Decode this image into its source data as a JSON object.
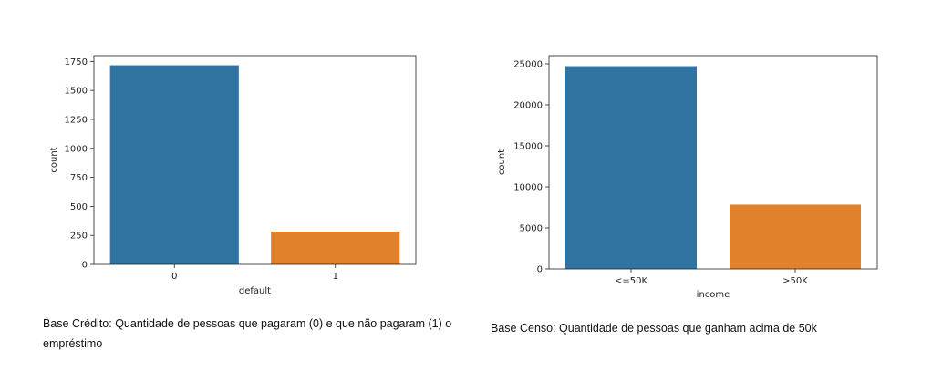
{
  "chart_data": [
    {
      "type": "bar",
      "categories": [
        "0",
        "1"
      ],
      "values": [
        1717,
        283
      ],
      "colors": [
        "#3274a1",
        "#e1812c"
      ],
      "xlabel": "default",
      "ylabel": "count",
      "ylim": [
        0,
        1800
      ],
      "yticks": [
        0,
        250,
        500,
        750,
        1000,
        1250,
        1500,
        1750
      ],
      "grid": false
    },
    {
      "type": "bar",
      "categories": [
        "<=50K",
        ">50K"
      ],
      "values": [
        24720,
        7841
      ],
      "colors": [
        "#3274a1",
        "#e1812c"
      ],
      "xlabel": "income",
      "ylabel": "count",
      "ylim": [
        0,
        26000
      ],
      "yticks": [
        0,
        5000,
        10000,
        15000,
        20000,
        25000
      ],
      "grid": false
    }
  ],
  "captions": {
    "left": "Base Crédito: Quantidade de pessoas que pagaram (0) e que não pagaram (1) o empréstimo",
    "right": "Base Censo: Quantidade de pessoas que ganham acima de 50k"
  }
}
